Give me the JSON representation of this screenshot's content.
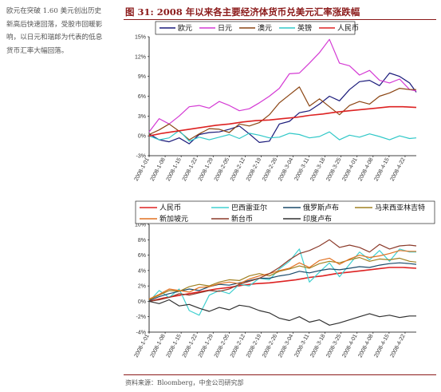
{
  "side_text": {
    "lines": [
      "欧元在突破 1.60 美元创出历史",
      "新高后快速回落，受股市回暖影",
      "响，以日元和瑞郎为代表的低息",
      "货币汇率大幅回落。"
    ]
  },
  "figure": {
    "label": "图 31:",
    "title": "2008 年以来各主要经济体货币兑美元汇率涨跌幅",
    "source": "资料来源：Bloomberg，中金公司研究部"
  },
  "chart_data": [
    {
      "type": "line",
      "x_ticks": [
        "2008-1-01",
        "2008-1-08",
        "2008-1-15",
        "2008-1-22",
        "2008-1-29",
        "2008-2-05",
        "2008-2-12",
        "2008-2-19",
        "2008-2-26",
        "2008-3-04",
        "2008-3-11",
        "2008-3-18",
        "2008-3-25",
        "2008-4-01",
        "2008-4-08",
        "2008-4-15",
        "2008-4-22"
      ],
      "y_ticks": [
        "15%",
        "12%",
        "9%",
        "6%",
        "3%",
        "0%",
        "-3%"
      ],
      "ylim": [
        -3,
        15
      ],
      "legend": "top",
      "grid": false,
      "series": [
        {
          "name": "欧元",
          "color": "#1a1a7a",
          "x": [
            0,
            3,
            6,
            9,
            12,
            15,
            18,
            21,
            24,
            27,
            30,
            33,
            36,
            39,
            42,
            45,
            48,
            51,
            54,
            57,
            60,
            63,
            66,
            69,
            72,
            75,
            78,
            80
          ],
          "values": [
            0.3,
            -0.6,
            -0.9,
            -0.3,
            -1.2,
            0.2,
            0.5,
            0.6,
            1.0,
            1.5,
            0.3,
            -1.0,
            -0.8,
            1.8,
            2.2,
            3.5,
            3.8,
            4.8,
            6.0,
            5.3,
            7.0,
            8.2,
            8.4,
            7.6,
            9.5,
            9.0,
            8.0,
            6.6
          ]
        },
        {
          "name": "日元",
          "color": "#d43ad4",
          "x": [
            0,
            3,
            6,
            9,
            12,
            15,
            18,
            21,
            24,
            27,
            30,
            33,
            36,
            39,
            42,
            45,
            48,
            51,
            54,
            57,
            60,
            63,
            66,
            69,
            72,
            75,
            78,
            80
          ],
          "values": [
            0.6,
            2.6,
            1.8,
            3.0,
            4.4,
            4.6,
            4.2,
            5.2,
            4.6,
            3.8,
            4.1,
            5.0,
            6.0,
            7.2,
            9.4,
            9.5,
            11.0,
            12.6,
            14.6,
            11.0,
            10.6,
            9.2,
            9.9,
            8.4,
            8.0,
            8.6,
            7.0,
            6.8
          ]
        },
        {
          "name": "澳元",
          "color": "#8b4513",
          "x": [
            0,
            3,
            6,
            9,
            12,
            15,
            18,
            21,
            24,
            27,
            30,
            33,
            36,
            39,
            42,
            45,
            48,
            51,
            54,
            57,
            60,
            63,
            66,
            69,
            72,
            75,
            78,
            80
          ],
          "values": [
            0.2,
            0.9,
            1.8,
            0.7,
            -0.6,
            0.3,
            1.1,
            1.0,
            0.5,
            1.8,
            1.5,
            2.0,
            3.2,
            5.0,
            6.2,
            7.4,
            4.5,
            5.6,
            4.4,
            3.2,
            4.6,
            5.2,
            4.8,
            6.0,
            6.5,
            7.2,
            7.0,
            7.0
          ]
        },
        {
          "name": "英镑",
          "color": "#30c8c8",
          "x": [
            0,
            3,
            6,
            9,
            12,
            15,
            18,
            21,
            24,
            27,
            30,
            33,
            36,
            39,
            42,
            45,
            48,
            51,
            54,
            57,
            60,
            63,
            66,
            69,
            72,
            75,
            78,
            80
          ],
          "values": [
            0.0,
            -0.6,
            -0.3,
            0.8,
            -0.8,
            -0.2,
            -0.6,
            -0.2,
            0.2,
            -0.4,
            0.4,
            0.1,
            -0.3,
            -0.2,
            0.4,
            0.2,
            -0.3,
            -0.1,
            0.6,
            -0.6,
            0.1,
            -0.2,
            0.3,
            -0.1,
            -0.6,
            0.0,
            -0.4,
            -0.3
          ]
        },
        {
          "name": "人民币",
          "color": "#dd2222",
          "x": [
            0,
            4,
            8,
            12,
            16,
            20,
            24,
            28,
            32,
            36,
            40,
            44,
            48,
            52,
            56,
            60,
            64,
            68,
            72,
            76,
            80
          ],
          "values": [
            0.0,
            0.4,
            0.7,
            1.0,
            1.3,
            1.6,
            1.8,
            2.1,
            2.3,
            2.4,
            2.6,
            2.8,
            3.1,
            3.3,
            3.6,
            3.8,
            4.0,
            4.2,
            4.4,
            4.4,
            4.3
          ]
        }
      ]
    },
    {
      "type": "line",
      "x_ticks": [
        "2008-1-01",
        "2008-1-08",
        "2008-1-15",
        "2008-1-22",
        "2008-1-29",
        "2008-2-05",
        "2008-2-12",
        "2008-2-19",
        "2008-2-26",
        "2008-3-04",
        "2008-3-11",
        "2008-3-18",
        "2008-3-25",
        "2008-4-01",
        "2008-4-08",
        "2008-4-15",
        "2008-4-22"
      ],
      "y_ticks": [
        "10%",
        "8%",
        "6%",
        "4%",
        "2%",
        "0%",
        "-2%",
        "-4%"
      ],
      "ylim": [
        -4,
        10
      ],
      "legend": "top",
      "grid": false,
      "series": [
        {
          "name": "人民币",
          "color": "#dd2222",
          "x": [
            0,
            4,
            8,
            12,
            16,
            20,
            24,
            28,
            32,
            36,
            40,
            44,
            48,
            52,
            56,
            60,
            64,
            68,
            72,
            76,
            80
          ],
          "values": [
            0.0,
            0.4,
            0.7,
            1.0,
            1.3,
            1.6,
            1.8,
            2.1,
            2.3,
            2.4,
            2.6,
            2.8,
            3.1,
            3.3,
            3.6,
            3.8,
            4.0,
            4.2,
            4.4,
            4.4,
            4.3
          ]
        },
        {
          "name": "巴西雷亚尔",
          "color": "#40d0d0",
          "x": [
            0,
            3,
            6,
            9,
            12,
            15,
            18,
            21,
            24,
            27,
            30,
            33,
            36,
            39,
            42,
            45,
            48,
            51,
            54,
            57,
            60,
            63,
            66,
            69,
            72,
            75,
            78,
            80
          ],
          "values": [
            0.0,
            1.4,
            0.5,
            1.6,
            -1.2,
            -1.8,
            0.8,
            1.4,
            1.0,
            2.2,
            2.0,
            3.0,
            2.8,
            4.2,
            5.2,
            6.8,
            2.5,
            3.8,
            5.0,
            3.2,
            4.8,
            6.4,
            5.4,
            6.6,
            5.2,
            6.8,
            6.4,
            6.4
          ]
        },
        {
          "name": "俄罗斯卢布",
          "color": "#1a4a6a",
          "x": [
            0,
            3,
            6,
            9,
            12,
            15,
            18,
            21,
            24,
            27,
            30,
            33,
            36,
            39,
            42,
            45,
            48,
            51,
            54,
            57,
            60,
            63,
            66,
            69,
            72,
            75,
            78,
            80
          ],
          "values": [
            0.1,
            0.6,
            1.0,
            1.3,
            1.6,
            1.4,
            1.9,
            2.2,
            2.1,
            2.4,
            2.7,
            3.0,
            3.0,
            3.3,
            3.5,
            3.9,
            3.7,
            4.0,
            4.2,
            4.1,
            4.3,
            4.5,
            4.4,
            4.7,
            4.9,
            5.0,
            4.9,
            4.8
          ]
        },
        {
          "name": "马来西亚林吉特",
          "color": "#a08020",
          "x": [
            0,
            3,
            6,
            9,
            12,
            15,
            18,
            21,
            24,
            27,
            30,
            33,
            36,
            39,
            42,
            45,
            48,
            51,
            54,
            57,
            60,
            63,
            66,
            69,
            72,
            75,
            78,
            80
          ],
          "values": [
            0.2,
            0.8,
            1.4,
            1.3,
            1.9,
            2.2,
            2.0,
            2.5,
            2.8,
            2.7,
            3.3,
            3.6,
            3.3,
            3.9,
            4.2,
            4.6,
            4.3,
            4.9,
            5.2,
            5.0,
            5.4,
            5.7,
            5.2,
            5.5,
            5.4,
            5.6,
            5.2,
            5.1
          ]
        },
        {
          "name": "新加坡元",
          "color": "#e07020",
          "x": [
            0,
            3,
            6,
            9,
            12,
            15,
            18,
            21,
            24,
            27,
            30,
            33,
            36,
            39,
            42,
            45,
            48,
            51,
            54,
            57,
            60,
            63,
            66,
            69,
            72,
            75,
            78,
            80
          ],
          "values": [
            0.3,
            0.9,
            1.6,
            1.4,
            1.2,
            1.8,
            1.9,
            2.3,
            2.5,
            2.3,
            2.9,
            3.3,
            3.6,
            4.0,
            4.3,
            5.0,
            4.4,
            5.3,
            5.6,
            4.8,
            5.5,
            6.0,
            5.7,
            5.9,
            6.2,
            6.6,
            6.5,
            6.5
          ]
        },
        {
          "name": "新台币",
          "color": "#8b3a2a",
          "x": [
            0,
            3,
            6,
            9,
            12,
            15,
            18,
            21,
            24,
            27,
            30,
            33,
            36,
            39,
            42,
            45,
            48,
            51,
            54,
            57,
            60,
            63,
            66,
            69,
            72,
            75,
            78,
            80
          ],
          "values": [
            0.0,
            0.2,
            0.5,
            1.0,
            0.8,
            1.1,
            1.4,
            1.3,
            1.6,
            2.2,
            2.6,
            3.0,
            3.6,
            4.4,
            5.4,
            6.2,
            6.6,
            7.2,
            8.0,
            7.0,
            7.3,
            7.0,
            6.4,
            7.4,
            6.8,
            7.2,
            7.3,
            7.2
          ]
        },
        {
          "name": "印度卢布",
          "color": "#303030",
          "x": [
            0,
            3,
            6,
            9,
            12,
            15,
            18,
            21,
            24,
            27,
            30,
            33,
            36,
            39,
            42,
            45,
            48,
            51,
            54,
            57,
            60,
            63,
            66,
            69,
            72,
            75,
            78,
            80
          ],
          "values": [
            0.0,
            -0.3,
            0.2,
            -0.6,
            -0.4,
            -0.9,
            -1.3,
            -0.8,
            -1.1,
            -0.5,
            -0.7,
            -1.2,
            -1.5,
            -2.2,
            -2.5,
            -2.0,
            -2.7,
            -2.4,
            -3.1,
            -2.8,
            -2.4,
            -2.0,
            -1.6,
            -2.0,
            -1.8,
            -2.1,
            -1.9,
            -1.9
          ]
        }
      ]
    }
  ]
}
